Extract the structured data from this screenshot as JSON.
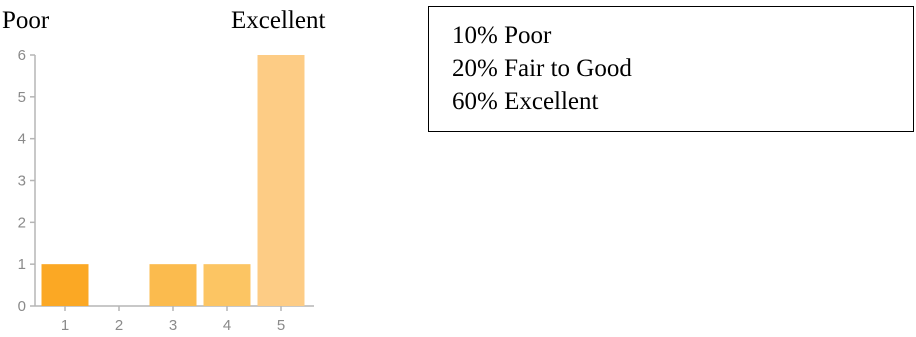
{
  "header": {
    "left_label": "Poor",
    "right_label": "Excellent"
  },
  "summary": {
    "lines": [
      "10% Poor",
      "20% Fair to Good",
      "60% Excellent"
    ]
  },
  "chart_data": {
    "type": "bar",
    "categories": [
      "1",
      "2",
      "3",
      "4",
      "5"
    ],
    "values": [
      1,
      0,
      1,
      1,
      6
    ],
    "colors": [
      "#fba824",
      "#fbb43a",
      "#fbbb4e",
      "#fcc563",
      "#fdcc85"
    ],
    "yticks": [
      0,
      1,
      2,
      3,
      4,
      5,
      6
    ],
    "ylim": [
      0,
      6
    ],
    "title": "",
    "xlabel": "",
    "ylabel": ""
  }
}
